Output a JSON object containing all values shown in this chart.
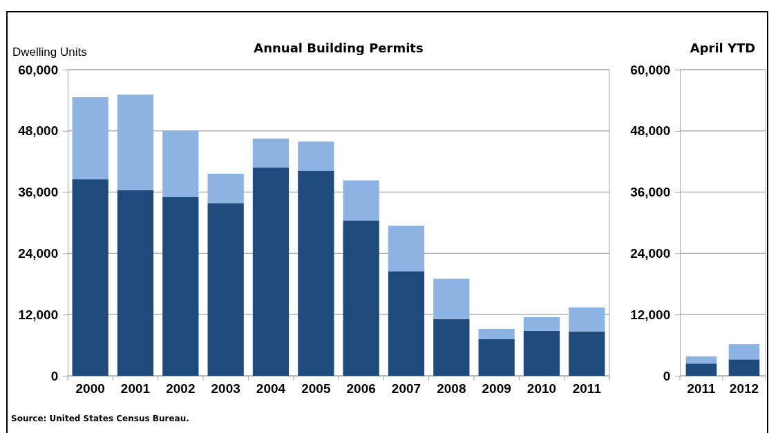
{
  "chart_data": [
    {
      "type": "bar",
      "stacked": true,
      "title": "Annual Building Permits",
      "ylabel": "Dwelling Units",
      "categories": [
        "2000",
        "2001",
        "2002",
        "2003",
        "2004",
        "2005",
        "2006",
        "2007",
        "2008",
        "2009",
        "2010",
        "2011"
      ],
      "series": [
        {
          "color": "#1f4a7c",
          "values": [
            38500,
            36400,
            35000,
            33800,
            40800,
            40200,
            30400,
            20500,
            11100,
            7200,
            8800,
            8700
          ]
        },
        {
          "color": "#8db3e2",
          "values": [
            16100,
            18700,
            13000,
            5800,
            5700,
            5700,
            7900,
            8900,
            7900,
            2000,
            2700,
            4700
          ]
        }
      ],
      "ylim": [
        0,
        60000
      ],
      "yticks": [
        {
          "value": 0,
          "label": "0"
        },
        {
          "value": 12000,
          "label": "12,000"
        },
        {
          "value": 24000,
          "label": "24,000"
        },
        {
          "value": 36000,
          "label": "36,000"
        },
        {
          "value": 48000,
          "label": "48,000"
        },
        {
          "value": 60000,
          "label": "60,000"
        }
      ],
      "grid": "y",
      "annotations": [
        "Source: United States Census Bureau."
      ]
    },
    {
      "type": "bar",
      "stacked": true,
      "title": "April YTD",
      "categories": [
        "2011",
        "2012"
      ],
      "series": [
        {
          "color": "#1f4a7c",
          "values": [
            2400,
            3200
          ]
        },
        {
          "color": "#8db3e2",
          "values": [
            1400,
            3000
          ]
        }
      ],
      "ylim": [
        0,
        60000
      ],
      "yticks": [
        {
          "value": 0,
          "label": "0"
        },
        {
          "value": 12000,
          "label": "12,000"
        },
        {
          "value": 24000,
          "label": "24,000"
        },
        {
          "value": 36000,
          "label": "36,000"
        },
        {
          "value": 48000,
          "label": "48,000"
        },
        {
          "value": 60000,
          "label": "60,000"
        }
      ],
      "grid": "y"
    }
  ]
}
